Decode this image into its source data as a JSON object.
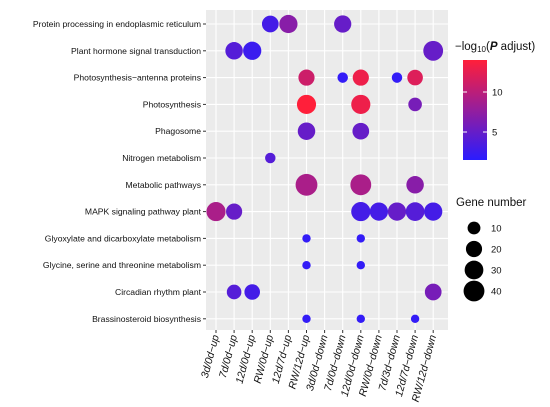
{
  "chart_data": {
    "type": "scatter",
    "x_categories": [
      "3d/0d−up",
      "7d/0d−up",
      "12d/0d−up",
      "RW/0d−up",
      "12d/7d−up",
      "RW/12d−up",
      "3d/0d−down",
      "7d/0d−down",
      "12d/0d−down",
      "RW/0d−down",
      "7d/3d−down",
      "12d/7d−down",
      "RW/12d−down"
    ],
    "y_categories": [
      "Protein processing in endoplasmic reticulum",
      "Plant hormone signal transduction",
      "Photosynthesis−antenna proteins",
      "Photosynthesis",
      "Phagosome",
      "Nitrogen metabolism",
      "Metabolic pathways",
      "MAPK signaling pathway plant",
      "Glyoxylate and dicarboxylate metabolism",
      "Glycine, serine and threonine metabolism",
      "Circadian rhythm plant",
      "Brassinosteroid biosynthesis"
    ],
    "points": [
      {
        "x": "RW/0d−up",
        "y": "Protein processing in endoplasmic reticulum",
        "size": 22,
        "p": 3
      },
      {
        "x": "12d/7d−up",
        "y": "Protein processing in endoplasmic reticulum",
        "size": 28,
        "p": 7
      },
      {
        "x": "7d/0d−down",
        "y": "Protein processing in endoplasmic reticulum",
        "size": 24,
        "p": 5
      },
      {
        "x": "7d/0d−up",
        "y": "Plant hormone signal transduction",
        "size": 25,
        "p": 4
      },
      {
        "x": "12d/0d−up",
        "y": "Plant hormone signal transduction",
        "size": 28,
        "p": 2.5
      },
      {
        "x": "RW/12d−down",
        "y": "Plant hormone signal transduction",
        "size": 35,
        "p": 5
      },
      {
        "x": "RW/12d−up",
        "y": "Photosynthesis−antenna proteins",
        "size": 20,
        "p": 11
      },
      {
        "x": "7d/0d−down",
        "y": "Photosynthesis−antenna proteins",
        "size": 5,
        "p": 2
      },
      {
        "x": "12d/0d−down",
        "y": "Photosynthesis−antenna proteins",
        "size": 20,
        "p": 13
      },
      {
        "x": "7d/3d−down",
        "y": "Photosynthesis−antenna proteins",
        "size": 5,
        "p": 2
      },
      {
        "x": "12d/7d−down",
        "y": "Photosynthesis−antenna proteins",
        "size": 18,
        "p": 12
      },
      {
        "x": "RW/12d−up",
        "y": "Photosynthesis",
        "size": 32,
        "p": 14
      },
      {
        "x": "12d/0d−down",
        "y": "Photosynthesis",
        "size": 32,
        "p": 13
      },
      {
        "x": "12d/7d−down",
        "y": "Photosynthesis",
        "size": 12,
        "p": 6
      },
      {
        "x": "RW/12d−up",
        "y": "Phagosome",
        "size": 25,
        "p": 5
      },
      {
        "x": "12d/0d−down",
        "y": "Phagosome",
        "size": 22,
        "p": 5
      },
      {
        "x": "RW/0d−up",
        "y": "Nitrogen metabolism",
        "size": 5,
        "p": 4
      },
      {
        "x": "RW/12d−up",
        "y": "Metabolic pathways",
        "size": 45,
        "p": 9
      },
      {
        "x": "12d/0d−down",
        "y": "Metabolic pathways",
        "size": 40,
        "p": 9
      },
      {
        "x": "12d/7d−down",
        "y": "Metabolic pathways",
        "size": 25,
        "p": 7
      },
      {
        "x": "3d/0d−up",
        "y": "MAPK signaling pathway plant",
        "size": 32,
        "p": 9
      },
      {
        "x": "7d/0d−up",
        "y": "MAPK signaling pathway plant",
        "size": 20,
        "p": 5
      },
      {
        "x": "12d/0d−down",
        "y": "MAPK signaling pathway plant",
        "size": 32,
        "p": 3
      },
      {
        "x": "RW/0d−down",
        "y": "MAPK signaling pathway plant",
        "size": 28,
        "p": 3
      },
      {
        "x": "7d/3d−down",
        "y": "MAPK signaling pathway plant",
        "size": 28,
        "p": 5
      },
      {
        "x": "12d/7d−down",
        "y": "MAPK signaling pathway plant",
        "size": 30,
        "p": 4
      },
      {
        "x": "RW/12d−down",
        "y": "MAPK signaling pathway plant",
        "size": 28,
        "p": 3
      },
      {
        "x": "RW/12d−up",
        "y": "Glyoxylate and dicarboxylate metabolism",
        "size": 2,
        "p": 2
      },
      {
        "x": "12d/0d−down",
        "y": "Glyoxylate and dicarboxylate metabolism",
        "size": 2,
        "p": 2
      },
      {
        "x": "RW/12d−up",
        "y": "Glycine, serine and threonine metabolism",
        "size": 2,
        "p": 2
      },
      {
        "x": "12d/0d−down",
        "y": "Glycine, serine and threonine metabolism",
        "size": 2,
        "p": 2
      },
      {
        "x": "7d/0d−up",
        "y": "Circadian rhythm plant",
        "size": 15,
        "p": 4
      },
      {
        "x": "12d/0d−up",
        "y": "Circadian rhythm plant",
        "size": 18,
        "p": 3
      },
      {
        "x": "RW/12d−down",
        "y": "Circadian rhythm plant",
        "size": 22,
        "p": 6
      },
      {
        "x": "RW/12d−up",
        "y": "Brassinosteroid biosynthesis",
        "size": 2,
        "p": 2
      },
      {
        "x": "12d/0d−down",
        "y": "Brassinosteroid biosynthesis",
        "size": 2,
        "p": 2
      },
      {
        "x": "12d/7d−down",
        "y": "Brassinosteroid biosynthesis",
        "size": 2,
        "p": 2
      }
    ],
    "color_legend": {
      "title_prefix": "−log",
      "title_sub": "10",
      "title_open": "(",
      "title_p": "P",
      "title_suffix": " adjust)",
      "ticks": [
        5,
        10
      ],
      "range": [
        1.5,
        14
      ],
      "color_low": "#2a1cff",
      "color_high": "#ff1f3a"
    },
    "size_legend": {
      "title": "Gene number",
      "values": [
        10,
        20,
        30,
        40
      ]
    },
    "panel_background": "#ebebeb",
    "grid": true
  }
}
